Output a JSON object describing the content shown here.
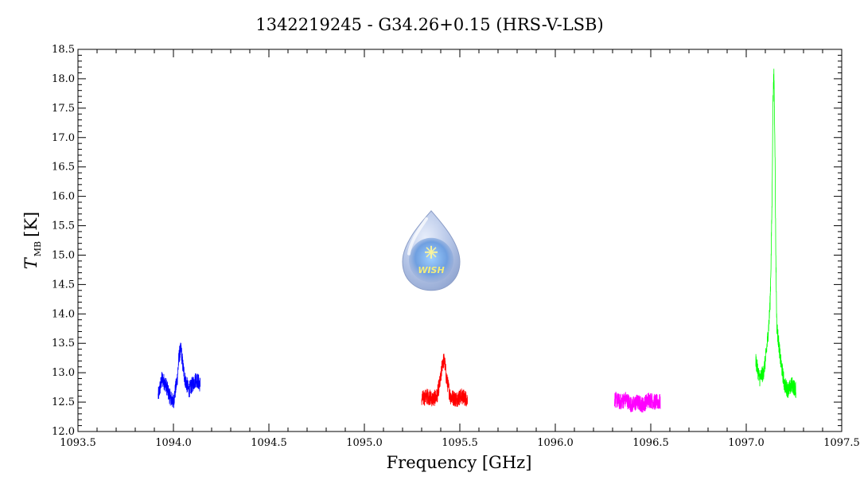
{
  "chart_data": {
    "type": "line",
    "title": "1342219245 - G34.26+0.15 (HRS-V-LSB)",
    "xlabel": "Frequency [GHz]",
    "ylabel_main": "T",
    "ylabel_subscript": "MB",
    "ylabel_unit": "[K]",
    "xlim": [
      1093.5,
      1097.5
    ],
    "ylim": [
      12.0,
      18.5
    ],
    "x_ticks": [
      "1093.5",
      "1094.0",
      "1094.5",
      "1095.0",
      "1095.5",
      "1096.0",
      "1096.5",
      "1097.0",
      "1097.5"
    ],
    "y_ticks": [
      "12.0",
      "12.5",
      "13.0",
      "13.5",
      "14.0",
      "14.5",
      "15.0",
      "15.5",
      "16.0",
      "16.5",
      "17.0",
      "17.5",
      "18.0",
      "18.5"
    ],
    "grid": false,
    "series": [
      {
        "color": "#0000ff",
        "x": [
          1093.92,
          1093.94,
          1093.96,
          1093.98,
          1094.0,
          1094.02,
          1094.03,
          1094.04,
          1094.05,
          1094.06,
          1094.08,
          1094.1,
          1094.12,
          1094.14
        ],
        "y": [
          12.6,
          12.9,
          12.8,
          12.6,
          12.5,
          12.9,
          13.3,
          13.4,
          13.1,
          12.9,
          12.7,
          12.8,
          12.9,
          12.8
        ]
      },
      {
        "color": "#ff0000",
        "x": [
          1095.3,
          1095.33,
          1095.36,
          1095.38,
          1095.4,
          1095.41,
          1095.42,
          1095.43,
          1095.45,
          1095.48,
          1095.51,
          1095.54
        ],
        "y": [
          12.55,
          12.6,
          12.55,
          12.6,
          12.9,
          13.2,
          13.2,
          12.9,
          12.6,
          12.55,
          12.6,
          12.55
        ]
      },
      {
        "color": "#ff00ff",
        "x": [
          1096.31,
          1096.34,
          1096.37,
          1096.4,
          1096.43,
          1096.46,
          1096.49,
          1096.52,
          1096.55
        ],
        "y": [
          12.55,
          12.5,
          12.55,
          12.45,
          12.5,
          12.45,
          12.55,
          12.5,
          12.5
        ]
      },
      {
        "color": "#00ff00",
        "x": [
          1097.05,
          1097.07,
          1097.09,
          1097.1,
          1097.11,
          1097.12,
          1097.125,
          1097.13,
          1097.135,
          1097.14,
          1097.145,
          1097.15,
          1097.155,
          1097.16,
          1097.17,
          1097.18,
          1097.19,
          1097.2,
          1097.22,
          1097.24,
          1097.26
        ],
        "y": [
          13.2,
          12.9,
          13.0,
          13.2,
          13.5,
          13.9,
          14.2,
          14.9,
          15.9,
          17.6,
          18.1,
          17.0,
          15.0,
          13.8,
          13.5,
          13.2,
          13.0,
          12.8,
          12.7,
          12.8,
          12.7
        ]
      }
    ]
  },
  "logo": {
    "text": "WISH",
    "x": 1095.35,
    "y": 15.05
  }
}
